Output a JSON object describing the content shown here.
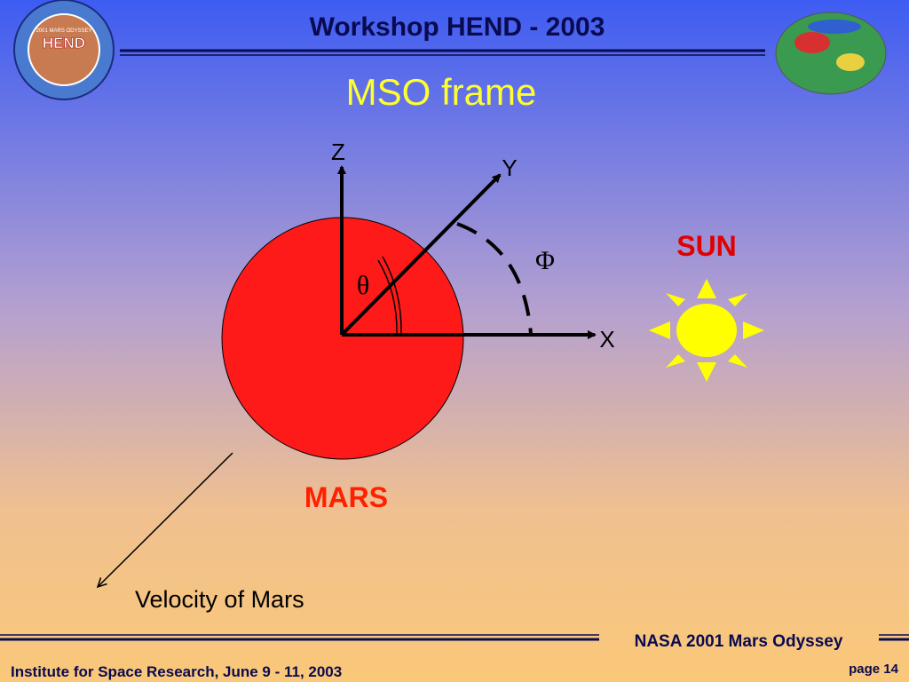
{
  "header": {
    "title": "Workshop   HEND - 2003",
    "logo_text": "HEND",
    "logo_subtext": "2001 MARS ODYSSEY"
  },
  "slide": {
    "title": "MSO frame"
  },
  "diagram": {
    "axis_z": "Z",
    "axis_y": "Y",
    "axis_x": "X",
    "theta": "θ",
    "phi": "Φ",
    "sun": "SUN",
    "mars": "MARS",
    "velocity": "Velocity of Mars"
  },
  "footer": {
    "mission": "NASA 2001 Mars Odyssey",
    "institute": "Institute for Space Research, June 9 - 11, 2003",
    "page": "page 14"
  }
}
